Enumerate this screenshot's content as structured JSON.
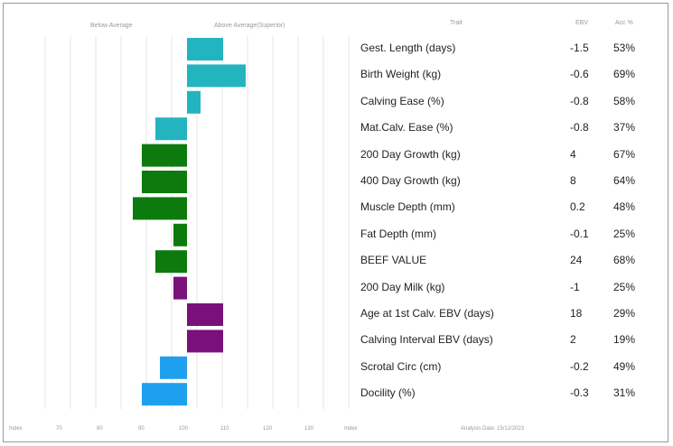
{
  "headers": {
    "below_average": "Below Average",
    "above_average": "Above Average(Superior)",
    "trait": "Trait",
    "ebv": "EBV",
    "acc": "Acc %"
  },
  "footer": {
    "index_label": "Index",
    "ticks": [
      "70",
      "80",
      "90",
      "100",
      "110",
      "120",
      "130"
    ],
    "index_label_right": "Index",
    "analysis_date": "Analysis Date: 15/12/2023"
  },
  "chart_data": {
    "type": "bar",
    "orientation": "horizontal",
    "baseline": 100,
    "xlim": [
      70,
      130
    ],
    "categories": [
      "Gest. Length (days)",
      "Birth Weight (kg)",
      "Calving Ease (%)",
      "Mat.Calv. Ease (%)",
      "200 Day Growth (kg)",
      "400 Day Growth (kg)",
      "Muscle Depth (mm)",
      "Fat Depth (mm)",
      "BEEF VALUE",
      "200 Day Milk (kg)",
      "Age at 1st Calv. EBV (days)",
      "Calving Interval EBV (days)",
      "Scrotal Circ (cm)",
      "Docility (%)"
    ],
    "values": [
      108,
      113,
      103,
      93,
      90,
      90,
      88,
      97,
      93,
      97,
      108,
      108,
      94,
      90
    ],
    "ebv": [
      "-1.5",
      "-0.6",
      "-0.8",
      "-0.8",
      "4",
      "8",
      "0.2",
      "-0.1",
      "24",
      "-1",
      "18",
      "2",
      "-0.2",
      "-0.3"
    ],
    "acc": [
      "53%",
      "69%",
      "58%",
      "37%",
      "67%",
      "64%",
      "48%",
      "25%",
      "68%",
      "25%",
      "29%",
      "19%",
      "49%",
      "31%"
    ],
    "bar_colors": [
      "#22b5bf",
      "#22b5bf",
      "#22b5bf",
      "#22b5bf",
      "#0d7a0d",
      "#0d7a0d",
      "#0d7a0d",
      "#0d7a0d",
      "#0d7a0d",
      "#7a117a",
      "#7a117a",
      "#7a117a",
      "#1fa0ee",
      "#1fa0ee"
    ],
    "grid": true
  }
}
